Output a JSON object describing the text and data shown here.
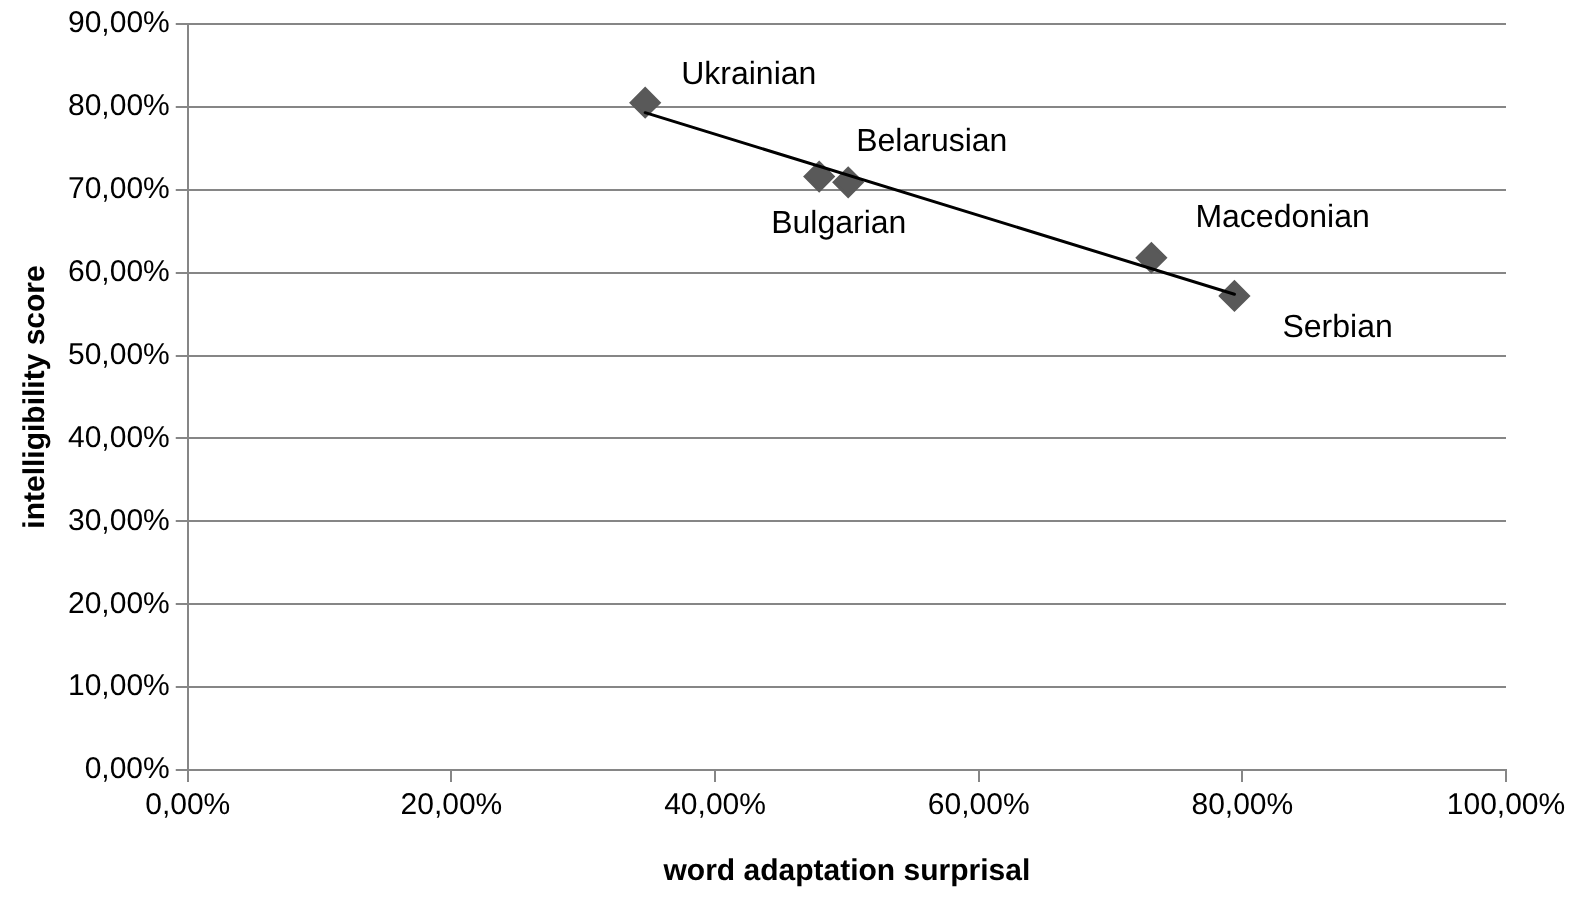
{
  "chart_data": {
    "type": "scatter",
    "xlabel": "word adaptation surprisal",
    "ylabel": "intelligibility score",
    "xlim": [
      0,
      100
    ],
    "ylim": [
      0,
      90
    ],
    "xticks": [
      {
        "value": 0,
        "label": "0,00%"
      },
      {
        "value": 20,
        "label": "20,00%"
      },
      {
        "value": 40,
        "label": "40,00%"
      },
      {
        "value": 60,
        "label": "60,00%"
      },
      {
        "value": 80,
        "label": "80,00%"
      },
      {
        "value": 100,
        "label": "100,00%"
      }
    ],
    "yticks": [
      {
        "value": 0,
        "label": "0,00%"
      },
      {
        "value": 10,
        "label": "10,00%"
      },
      {
        "value": 20,
        "label": "20,00%"
      },
      {
        "value": 30,
        "label": "30,00%"
      },
      {
        "value": 40,
        "label": "40,00%"
      },
      {
        "value": 50,
        "label": "50,00%"
      },
      {
        "value": 60,
        "label": "60,00%"
      },
      {
        "value": 70,
        "label": "70,00%"
      },
      {
        "value": 80,
        "label": "80,00%"
      },
      {
        "value": 90,
        "label": "90,00%"
      }
    ],
    "grid": "y",
    "legend": false,
    "marker": "diamond",
    "series": [
      {
        "color": "#595959",
        "x": [
          34.7,
          47.9,
          50.1,
          73.1,
          79.4
        ],
        "values": [
          80.5,
          71.6,
          70.9,
          61.8,
          57.2
        ]
      },
      {
        "type": "line",
        "color": "#000000",
        "marker": "none",
        "line_style": "solid",
        "x": [
          34.7,
          79.4
        ],
        "values": [
          79.3,
          57.4
        ]
      }
    ],
    "annotations": [
      {
        "text": "Ukrainian",
        "x": 34.7,
        "y": 80.5
      },
      {
        "text": "Belarusian",
        "x": 50.1,
        "y": 70.9
      },
      {
        "text": "Bulgarian",
        "x": 47.9,
        "y": 71.6
      },
      {
        "text": "Macedonian",
        "x": 73.1,
        "y": 61.8
      },
      {
        "text": "Serbian",
        "x": 79.4,
        "y": 57.2
      }
    ]
  }
}
